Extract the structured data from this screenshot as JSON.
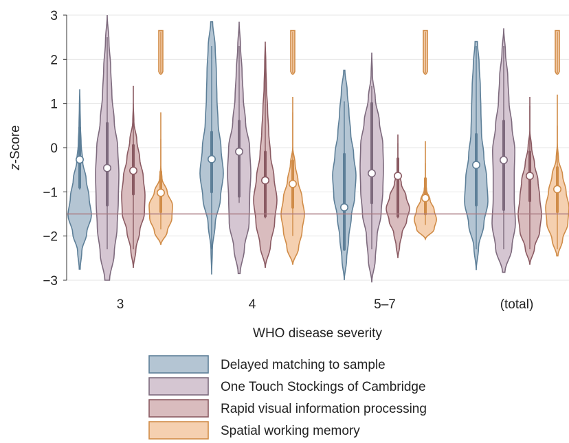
{
  "chart_data": {
    "type": "violin",
    "title": "",
    "xlabel": "WHO disease severity",
    "ylabel_prefix": "z",
    "ylabel_suffix": "-Score",
    "ylim": [
      -3,
      3
    ],
    "yticks": [
      "3",
      "2",
      "1",
      "0",
      "−1",
      "−2",
      "−3"
    ],
    "ytick_values": [
      3,
      2,
      1,
      0,
      -1,
      -2,
      -3
    ],
    "categories": [
      "3",
      "4",
      "5–7",
      "(total)"
    ],
    "grid": "horizontal",
    "legend_position": "bottom",
    "reference_line": -1.5,
    "reference_line_color": "#a97a82",
    "series": [
      {
        "name": "Delayed matching to sample",
        "fill": "#b4c5d3",
        "stroke": "#5d7f98",
        "medians": [
          -0.27,
          -0.26,
          -1.35,
          -0.39
        ],
        "q1": [
          -0.9,
          -1.0,
          -2.3,
          -1.3
        ],
        "q3": [
          0.45,
          0.35,
          -0.15,
          0.3
        ],
        "whisker_low": [
          -0.95,
          -2.3,
          -2.3,
          -2.3
        ],
        "whisker_high": [
          0.85,
          2.3,
          1.05,
          2.3
        ],
        "min": [
          -2.75,
          -2.87,
          -3.0,
          -2.77
        ],
        "max": [
          1.32,
          2.85,
          1.75,
          2.4
        ],
        "widths": [
          [
            0.04,
            0.18,
            0.6,
            1.0,
            0.8,
            0.55,
            0.25,
            0.12,
            0.06,
            0.03,
            0.0
          ],
          [
            0.0,
            0.06,
            0.3,
            0.75,
            1.0,
            0.8,
            0.55,
            0.45,
            0.4,
            0.3,
            0.08
          ],
          [
            0.0,
            0.2,
            0.38,
            0.6,
            0.9,
            1.0,
            0.8,
            0.55,
            0.4,
            0.25,
            0.05
          ],
          [
            0.0,
            0.2,
            0.65,
            1.0,
            0.9,
            0.65,
            0.45,
            0.4,
            0.35,
            0.25,
            0.1
          ]
        ]
      },
      {
        "name": "One Touch Stockings of Cambridge",
        "fill": "#d5c6d2",
        "stroke": "#7d6a7d",
        "medians": [
          -0.46,
          -0.09,
          -0.58,
          -0.28
        ],
        "q1": [
          -1.3,
          -1.1,
          -1.25,
          -1.4
        ],
        "q3": [
          0.55,
          0.6,
          1.0,
          0.6
        ],
        "whisker_low": [
          -2.3,
          -1.25,
          -2.3,
          -2.3
        ],
        "whisker_high": [
          2.5,
          2.3,
          1.4,
          2.3
        ],
        "min": [
          -3.0,
          -2.85,
          -3.05,
          -2.82
        ],
        "max": [
          3.0,
          2.85,
          2.15,
          2.7
        ],
        "widths": [
          [
            0.2,
            0.6,
            0.85,
            0.95,
            1.0,
            0.9,
            0.6,
            0.4,
            0.3,
            0.15,
            0.0
          ],
          [
            0.08,
            0.45,
            0.85,
            0.9,
            1.0,
            0.9,
            0.55,
            0.35,
            0.25,
            0.12,
            0.0
          ],
          [
            0.0,
            0.3,
            0.45,
            0.8,
            0.95,
            1.0,
            0.95,
            0.65,
            0.3,
            0.06,
            0.0
          ],
          [
            0.1,
            0.7,
            1.0,
            0.9,
            0.9,
            0.95,
            0.7,
            0.45,
            0.35,
            0.15,
            0.0
          ]
        ]
      },
      {
        "name": "Rapid visual information processing",
        "fill": "#d9bcbe",
        "stroke": "#8a5a62",
        "medians": [
          -0.52,
          -0.74,
          -0.64,
          -0.64
        ],
        "q1": [
          -1.05,
          -1.55,
          -1.55,
          -1.2
        ],
        "q3": [
          0.05,
          -0.1,
          -0.25,
          -0.1
        ],
        "whisker_low": [
          -2.3,
          -1.6,
          -1.6,
          -2.3
        ],
        "whisker_high": [
          1.0,
          2.05,
          0.1,
          0.95
        ],
        "min": [
          -2.72,
          -2.72,
          -2.5,
          -2.65
        ],
        "max": [
          1.4,
          2.4,
          0.3,
          1.15
        ],
        "widths": [
          [
            0.0,
            0.22,
            0.55,
            0.95,
            1.0,
            0.85,
            0.55,
            0.3,
            0.05,
            0.0,
            0.0
          ],
          [
            0.0,
            0.45,
            0.8,
            1.0,
            0.75,
            0.45,
            0.3,
            0.2,
            0.1,
            0.05,
            0.0
          ],
          [
            0.0,
            0.15,
            0.35,
            0.75,
            1.0,
            0.7,
            0.3,
            0.05,
            0.0,
            0.0,
            0.0
          ],
          [
            0.0,
            0.4,
            0.85,
            1.0,
            0.85,
            0.7,
            0.4,
            0.15,
            0.0,
            0.0,
            0.0
          ]
        ]
      },
      {
        "name": "Spatial working memory",
        "fill": "#f5d0b0",
        "stroke": "#d08c48",
        "medians": [
          -1.02,
          -0.82,
          -1.14,
          -0.94
        ],
        "q1": [
          -1.45,
          -1.35,
          -1.5,
          -1.45
        ],
        "q3": [
          -0.55,
          -0.3,
          -0.7,
          -0.45
        ],
        "whisker_low": [
          -1.85,
          -2.0,
          -1.75,
          -2.3
        ],
        "whisker_high": [
          0.2,
          0.8,
          -0.35,
          0.5
        ],
        "min": [
          -2.2,
          -2.65,
          -2.07,
          -2.45
        ],
        "max": [
          0.8,
          1.15,
          0.15,
          1.2
        ],
        "widths": [
          [
            0.0,
            0.55,
            0.95,
            1.0,
            0.55,
            0.1,
            0.0,
            0.0,
            0.0,
            0.0,
            0.0
          ],
          [
            0.0,
            0.5,
            0.8,
            1.0,
            0.8,
            0.45,
            0.2,
            0.0,
            0.0,
            0.0,
            0.0
          ],
          [
            0.0,
            0.75,
            0.95,
            0.75,
            0.4,
            0.1,
            0.0,
            0.0,
            0.0,
            0.0,
            0.0
          ],
          [
            0.05,
            0.45,
            0.9,
            1.0,
            0.75,
            0.45,
            0.1,
            0.0,
            0.0,
            0.0,
            0.0
          ]
        ],
        "outlier_min": [
          1.6,
          1.6,
          1.6,
          1.6
        ],
        "outlier_max": [
          2.65,
          2.65,
          2.65,
          2.65
        ]
      }
    ]
  }
}
